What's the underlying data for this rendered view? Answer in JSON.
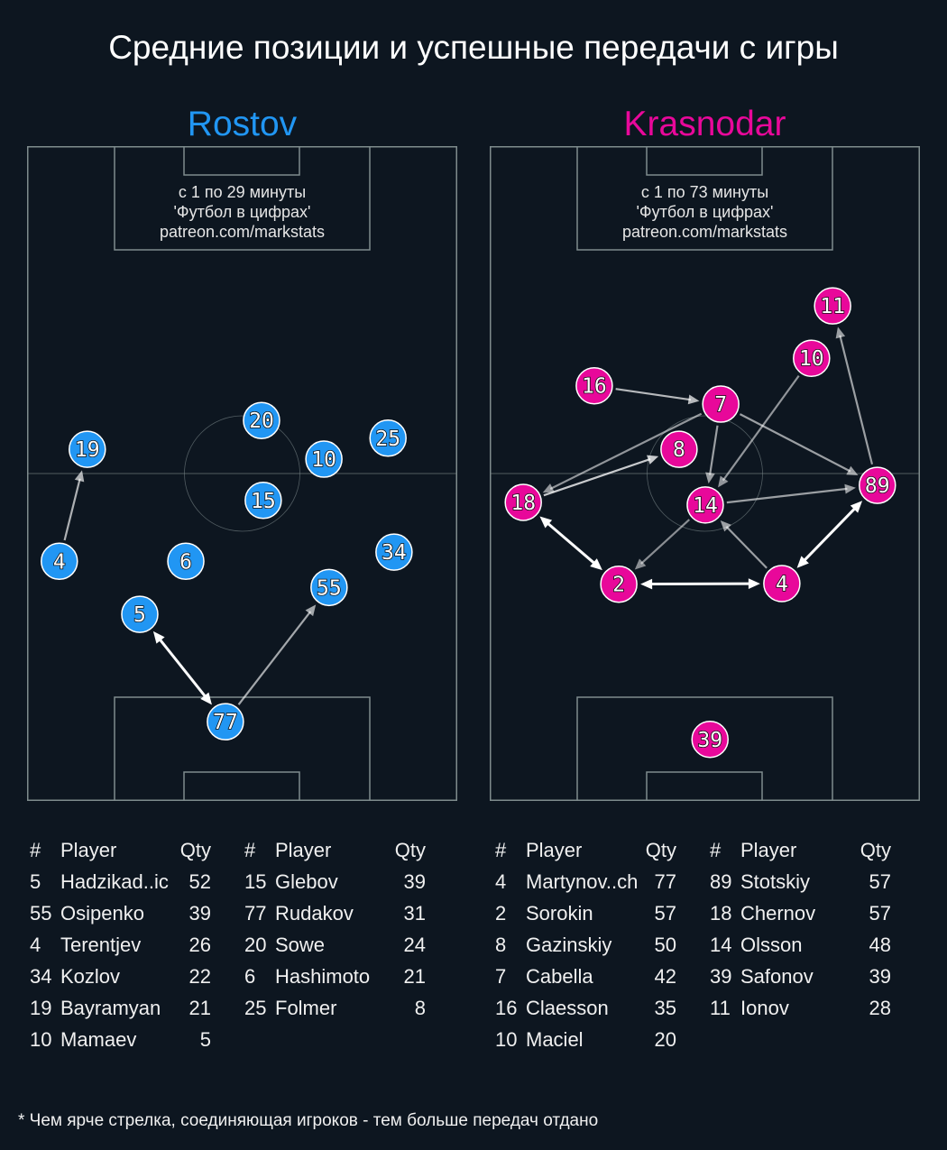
{
  "title": "Средние позиции и успешные передачи с игры",
  "footnote": "* Чем ярче стрелка, соединяющая игроков - тем больше передач отдано",
  "colors": {
    "background": "#0d1620",
    "pitch_lines": "#7f8c8d",
    "rostov": "#2196f3",
    "krasnodar": "#e8089a"
  },
  "table_headers": {
    "num": "#",
    "player": "Player",
    "qty": "Qty"
  },
  "teams": [
    {
      "name": "Rostov",
      "color": "#2196f3",
      "info": [
        "с 1 по 29 минуты",
        "'Футбол в цифрах'",
        "patreon.com/markstats"
      ],
      "players": [
        {
          "num": "19",
          "x": 14.0,
          "y": 46.3
        },
        {
          "num": "4",
          "x": 7.5,
          "y": 63.4
        },
        {
          "num": "20",
          "x": 54.5,
          "y": 41.9
        },
        {
          "num": "10",
          "x": 69.0,
          "y": 47.8
        },
        {
          "num": "25",
          "x": 83.9,
          "y": 44.6
        },
        {
          "num": "15",
          "x": 54.9,
          "y": 54.1
        },
        {
          "num": "6",
          "x": 36.9,
          "y": 63.4
        },
        {
          "num": "34",
          "x": 85.3,
          "y": 62.0
        },
        {
          "num": "55",
          "x": 70.2,
          "y": 67.4
        },
        {
          "num": "5",
          "x": 26.2,
          "y": 71.5
        },
        {
          "num": "77",
          "x": 46.1,
          "y": 87.9
        }
      ],
      "passes": [
        {
          "from": "4",
          "to": "19",
          "strength": 0.55,
          "both": false
        },
        {
          "from": "5",
          "to": "77",
          "strength": 1.0,
          "both": true
        },
        {
          "from": "77",
          "to": "55",
          "strength": 0.5,
          "both": false
        }
      ],
      "table": [
        [
          {
            "num": "5",
            "player": "Hadzikad..ic",
            "qty": "52"
          },
          {
            "num": "55",
            "player": "Osipenko",
            "qty": "39"
          },
          {
            "num": "4",
            "player": "Terentjev",
            "qty": "26"
          },
          {
            "num": "34",
            "player": "Kozlov",
            "qty": "22"
          },
          {
            "num": "19",
            "player": "Bayramyan",
            "qty": "21"
          },
          {
            "num": "10",
            "player": "Mamaev",
            "qty": "5"
          }
        ],
        [
          {
            "num": "15",
            "player": "Glebov",
            "qty": "39"
          },
          {
            "num": "77",
            "player": "Rudakov",
            "qty": "31"
          },
          {
            "num": "20",
            "player": "Sowe",
            "qty": "24"
          },
          {
            "num": "6",
            "player": "Hashimoto",
            "qty": "21"
          },
          {
            "num": "25",
            "player": "Folmer",
            "qty": "8"
          }
        ]
      ]
    },
    {
      "name": "Krasnodar",
      "color": "#e8089a",
      "info": [
        "с 1 по 73 минуты",
        "'Футбол в цифрах'",
        "patreon.com/markstats"
      ],
      "players": [
        {
          "num": "11",
          "x": 79.7,
          "y": 24.4
        },
        {
          "num": "10",
          "x": 74.8,
          "y": 32.4
        },
        {
          "num": "16",
          "x": 24.3,
          "y": 36.6
        },
        {
          "num": "7",
          "x": 53.7,
          "y": 39.4
        },
        {
          "num": "8",
          "x": 44.0,
          "y": 46.3
        },
        {
          "num": "18",
          "x": 7.8,
          "y": 54.4
        },
        {
          "num": "14",
          "x": 50.1,
          "y": 54.8
        },
        {
          "num": "89",
          "x": 90.1,
          "y": 51.8
        },
        {
          "num": "2",
          "x": 30.0,
          "y": 66.9
        },
        {
          "num": "4",
          "x": 67.9,
          "y": 66.8
        },
        {
          "num": "39",
          "x": 51.2,
          "y": 90.6
        }
      ],
      "passes": [
        {
          "from": "16",
          "to": "7",
          "strength": 0.6,
          "both": false
        },
        {
          "from": "7",
          "to": "18",
          "strength": 0.4,
          "both": false
        },
        {
          "from": "18",
          "to": "8",
          "strength": 0.7,
          "both": false
        },
        {
          "from": "7",
          "to": "14",
          "strength": 0.45,
          "both": false
        },
        {
          "from": "10",
          "to": "14",
          "strength": 0.4,
          "both": false
        },
        {
          "from": "7",
          "to": "89",
          "strength": 0.45,
          "both": false
        },
        {
          "from": "14",
          "to": "89",
          "strength": 0.45,
          "both": false
        },
        {
          "from": "14",
          "to": "2",
          "strength": 0.35,
          "both": false
        },
        {
          "from": "4",
          "to": "14",
          "strength": 0.45,
          "both": false
        },
        {
          "from": "89",
          "to": "11",
          "strength": 0.45,
          "both": false
        },
        {
          "from": "18",
          "to": "2",
          "strength": 1.0,
          "both": true
        },
        {
          "from": "2",
          "to": "4",
          "strength": 1.0,
          "both": true
        },
        {
          "from": "4",
          "to": "89",
          "strength": 1.0,
          "both": true
        }
      ],
      "table": [
        [
          {
            "num": "4",
            "player": "Martynov..ch",
            "qty": "77"
          },
          {
            "num": "2",
            "player": "Sorokin",
            "qty": "57"
          },
          {
            "num": "8",
            "player": "Gazinskiy",
            "qty": "50"
          },
          {
            "num": "7",
            "player": "Cabella",
            "qty": "42"
          },
          {
            "num": "16",
            "player": "Claesson",
            "qty": "35"
          },
          {
            "num": "10",
            "player": "Maciel",
            "qty": "20"
          }
        ],
        [
          {
            "num": "89",
            "player": "Stotskiy",
            "qty": "57"
          },
          {
            "num": "18",
            "player": "Chernov",
            "qty": "57"
          },
          {
            "num": "14",
            "player": "Olsson",
            "qty": "48"
          },
          {
            "num": "39",
            "player": "Safonov",
            "qty": "39"
          },
          {
            "num": "11",
            "player": "Ionov",
            "qty": "28"
          }
        ]
      ]
    }
  ]
}
